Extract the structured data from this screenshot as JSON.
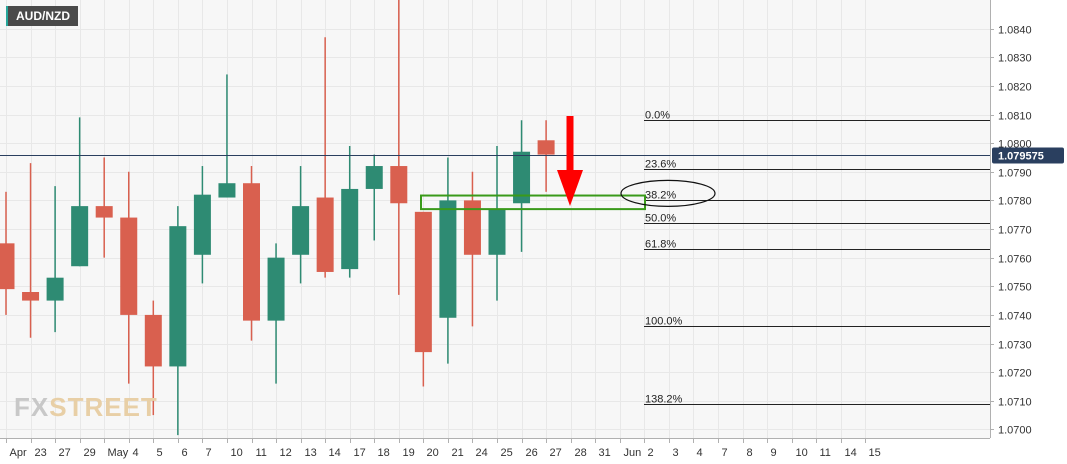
{
  "chart_data": {
    "type": "candlestick",
    "symbol": "AUD/NZD",
    "current_price": "1.079575",
    "watermark": {
      "fx": "FX",
      "street": "STREET"
    },
    "colors": {
      "up": "#2e8b73",
      "down": "#d9604f",
      "zone": "#3a9a1a",
      "arrow": "#ff0000",
      "price_tag": "#2a3f5f",
      "grid": "#e8e8e8",
      "background": "#f7f7f7"
    },
    "y_axis": {
      "min": 1.0697,
      "max": 1.085,
      "ticks": [
        "1.0700",
        "1.0710",
        "1.0720",
        "1.0730",
        "1.0740",
        "1.0750",
        "1.0760",
        "1.0770",
        "1.0780",
        "1.0790",
        "1.0800",
        "1.0810",
        "1.0820",
        "1.0830",
        "1.0840"
      ]
    },
    "x_axis": {
      "ticks": [
        "Apr",
        "23",
        "27",
        "29",
        "May",
        "4",
        "5",
        "6",
        "7",
        "10",
        "11",
        "12",
        "13",
        "14",
        "17",
        "18",
        "19",
        "20",
        "21",
        "24",
        "25",
        "26",
        "27",
        "28",
        "31",
        "Jun",
        "2",
        "3",
        "4",
        "7",
        "8",
        "9",
        "10",
        "11",
        "14",
        "15"
      ]
    },
    "candles": [
      {
        "o": 1.0765,
        "h": 1.0783,
        "l": 1.074,
        "c": 1.0749
      },
      {
        "o": 1.0748,
        "h": 1.0793,
        "l": 1.0732,
        "c": 1.0745
      },
      {
        "o": 1.0745,
        "h": 1.0785,
        "l": 1.0734,
        "c": 1.0753
      },
      {
        "o": 1.0757,
        "h": 1.0809,
        "l": 1.0757,
        "c": 1.0778
      },
      {
        "o": 1.0778,
        "h": 1.0795,
        "l": 1.076,
        "c": 1.0774
      },
      {
        "o": 1.0774,
        "h": 1.079,
        "l": 1.0716,
        "c": 1.074
      },
      {
        "o": 1.074,
        "h": 1.0745,
        "l": 1.0705,
        "c": 1.0722
      },
      {
        "o": 1.0722,
        "h": 1.0778,
        "l": 1.0698,
        "c": 1.0771
      },
      {
        "o": 1.0761,
        "h": 1.0792,
        "l": 1.0751,
        "c": 1.0782
      },
      {
        "o": 1.0781,
        "h": 1.0824,
        "l": 1.0781,
        "c": 1.0786
      },
      {
        "o": 1.0786,
        "h": 1.0792,
        "l": 1.0731,
        "c": 1.0738
      },
      {
        "o": 1.0738,
        "h": 1.0765,
        "l": 1.0716,
        "c": 1.076
      },
      {
        "o": 1.0761,
        "h": 1.0792,
        "l": 1.0751,
        "c": 1.0778
      },
      {
        "o": 1.0781,
        "h": 1.0837,
        "l": 1.0753,
        "c": 1.0755
      },
      {
        "o": 1.0756,
        "h": 1.0799,
        "l": 1.0753,
        "c": 1.0784
      },
      {
        "o": 1.0784,
        "h": 1.0796,
        "l": 1.0766,
        "c": 1.0792
      },
      {
        "o": 1.0792,
        "h": 1.085,
        "l": 1.0747,
        "c": 1.0779
      },
      {
        "o": 1.0776,
        "h": 1.0776,
        "l": 1.0715,
        "c": 1.0727
      },
      {
        "o": 1.0739,
        "h": 1.0795,
        "l": 1.0723,
        "c": 1.078
      },
      {
        "o": 1.078,
        "h": 1.079,
        "l": 1.0736,
        "c": 1.0761
      },
      {
        "o": 1.0761,
        "h": 1.0799,
        "l": 1.0745,
        "c": 1.0777
      },
      {
        "o": 1.0779,
        "h": 1.0808,
        "l": 1.0762,
        "c": 1.0797
      },
      {
        "o": 1.0801,
        "h": 1.0808,
        "l": 1.0783,
        "c": 1.0796
      }
    ],
    "fibonacci": [
      {
        "label": "0.0%",
        "price": 1.0808
      },
      {
        "label": "23.6%",
        "price": 1.0791
      },
      {
        "label": "38.2%",
        "price": 1.078
      },
      {
        "label": "50.0%",
        "price": 1.0772
      },
      {
        "label": "61.8%",
        "price": 1.0763
      },
      {
        "label": "100.0%",
        "price": 1.0736
      },
      {
        "label": "138.2%",
        "price": 1.0709
      }
    ],
    "highlight_zone": {
      "from_price": 1.0778,
      "to_price": 1.0781
    },
    "circled_level": "38.2%"
  }
}
